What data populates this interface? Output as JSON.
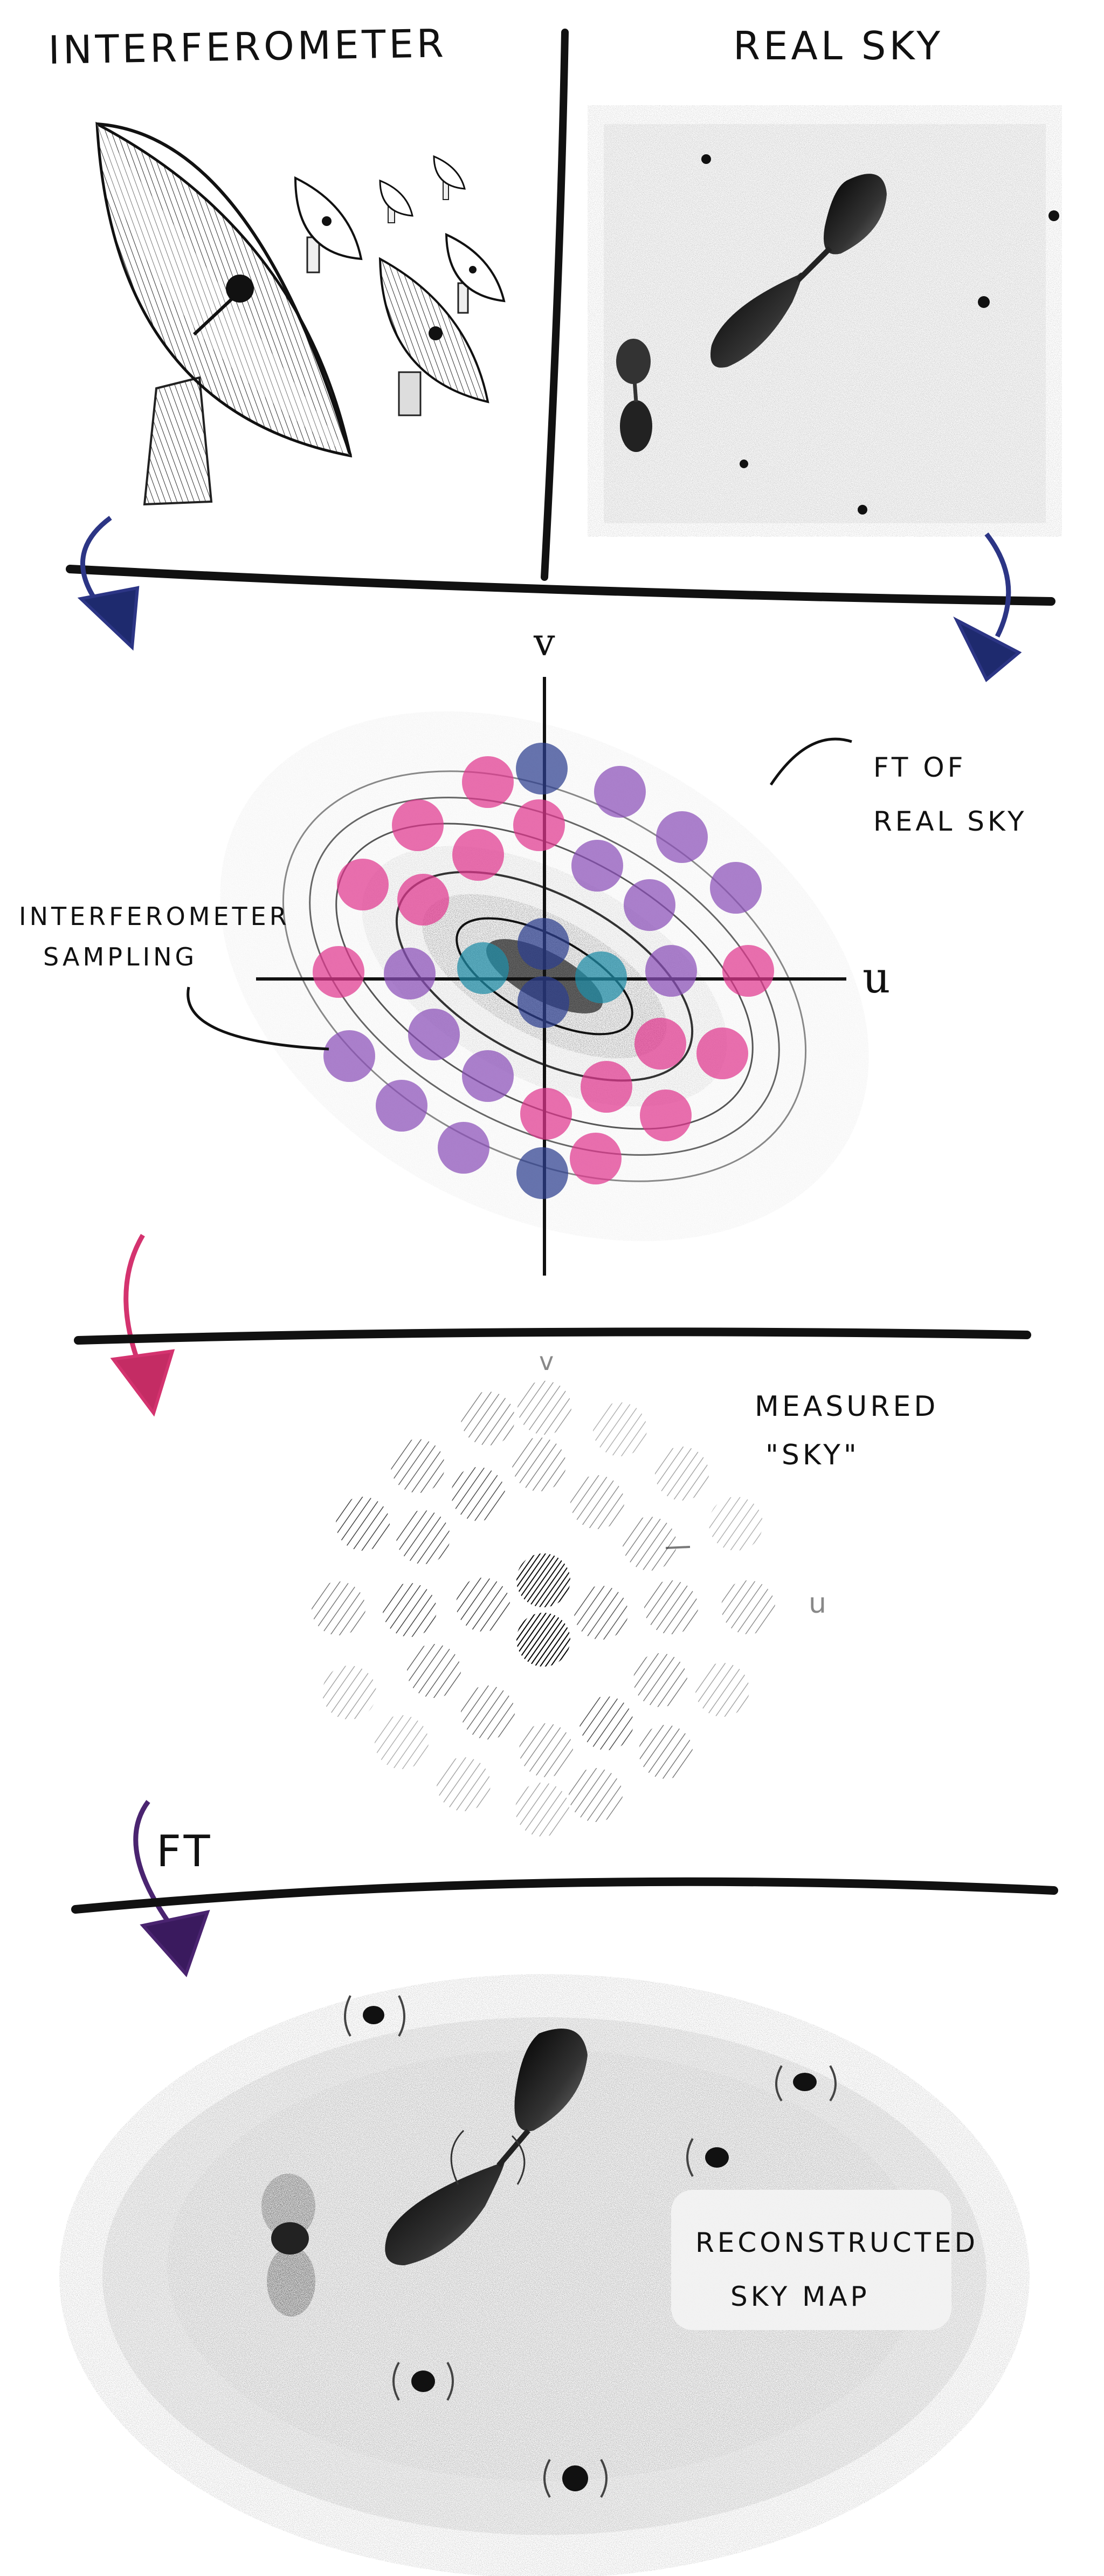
{
  "titles": {
    "left": "INTERFEROMETER",
    "right": "REAL SKY"
  },
  "uv_plane": {
    "axis_u": "u",
    "axis_v": "v",
    "ft_label_line1": "FT OF",
    "ft_label_line2": "REAL SKY",
    "sampling_line1": "INTERFEROMETER",
    "sampling_line2": "SAMPLING"
  },
  "measured": {
    "label_line1": "MEASURED",
    "label_line2": "\"SKY\"",
    "axis_u": "u",
    "axis_v": "v"
  },
  "transform": {
    "label": "FT"
  },
  "reconstructed": {
    "label_line1": "RECONSTRUCTED",
    "label_line2": "SKY MAP"
  },
  "colors": {
    "ink": "#111111",
    "pink": "#e0378f",
    "purple": "#8a4fb8",
    "navy": "#2d3f8f",
    "teal": "#1f8ea8",
    "arrow_blue": "#2c3585",
    "arrow_pink": "#d4336f",
    "arrow_purple": "#4a2470"
  }
}
